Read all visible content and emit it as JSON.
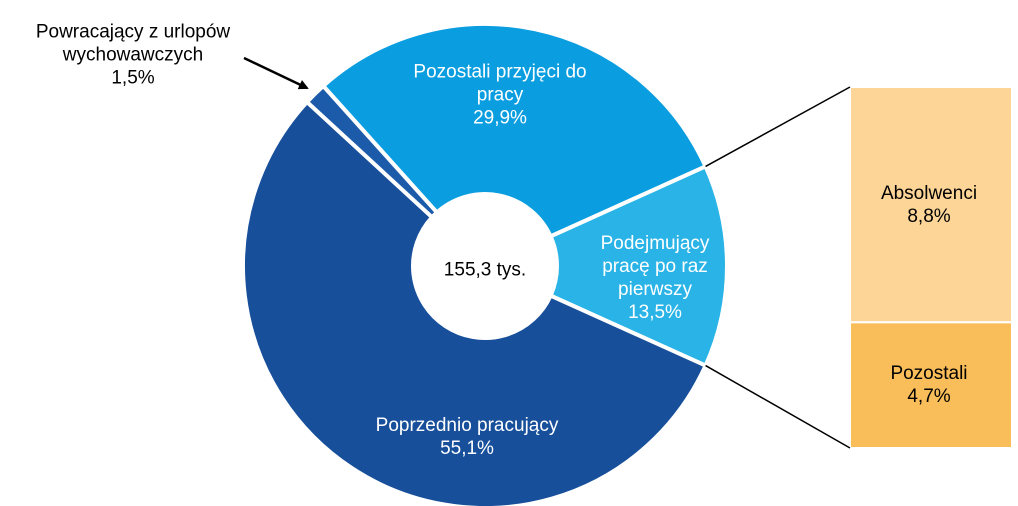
{
  "chart_data": {
    "type": "pie",
    "categories": [
      "Pozostali przyjęci do pracy",
      "Podejmujący pracę po raz pierwszy",
      "Poprzednio pracujący",
      "Powracający z urlopów wychowawczych"
    ],
    "values": [
      29.9,
      13.5,
      55.1,
      1.5
    ],
    "value_labels": [
      "29,9%",
      "13,5%",
      "55,1%",
      "1,5%"
    ],
    "colors": [
      "#0a9ddf",
      "#29b3e6",
      "#174f9b",
      "#1c5ba9"
    ],
    "center_label": "155,3 tys.",
    "breakdown": {
      "type": "bar",
      "of": 1,
      "categories": [
        "Absolwenci",
        "Pozostali"
      ],
      "values": [
        8.8,
        4.7
      ],
      "value_labels": [
        "8,8%",
        "4,7%"
      ],
      "colors": [
        "#fdd597",
        "#f9bd59"
      ]
    }
  }
}
